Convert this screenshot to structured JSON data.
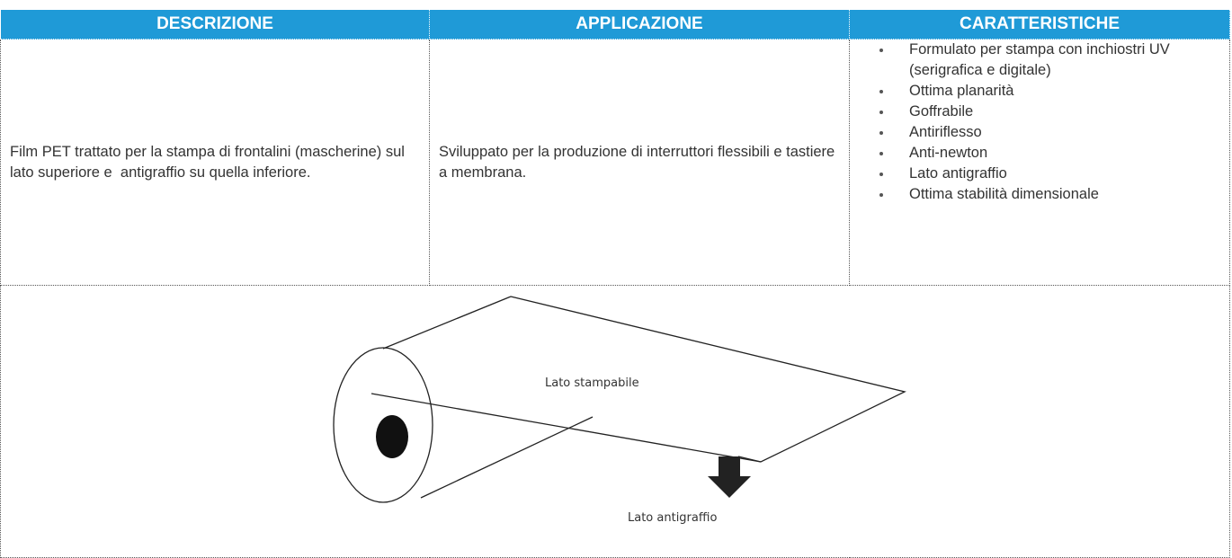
{
  "table": {
    "headers": [
      "DESCRIZIONE",
      "APPLICAZIONE",
      "CARATTERISTICHE"
    ],
    "rows": [
      [
        "Film PET trattato per la stampa di frontalini (mascherine) sul lato superiore e  antigraffio su quella inferiore.",
        "Sviluppato per la produzione di interruttori flessibili e tastiere a membrana.",
        [
          "Formulato per stampa con inchiostri UV (serigrafica e digitale)",
          "Ottima planarità",
          "Goffrabile",
          "Antiriflesso",
          "Anti-newton",
          "Lato antigraffio",
          "Ottima stabilità dimensionale"
        ]
      ]
    ]
  },
  "diagram": {
    "labels": [
      "Lato stampabile",
      "Lato antigraffio"
    ]
  }
}
